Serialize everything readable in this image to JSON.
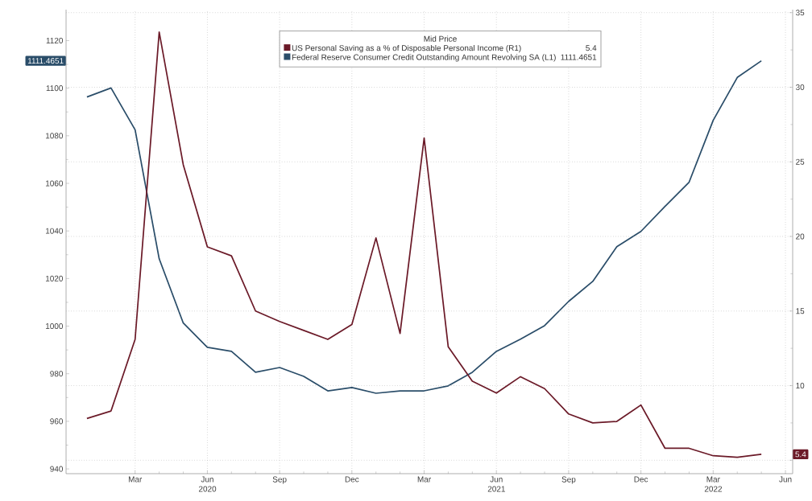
{
  "chart_data": {
    "type": "line",
    "legend_title": "Mid Price",
    "x": [
      "2020-01",
      "2020-02",
      "2020-03",
      "2020-04",
      "2020-05",
      "2020-06",
      "2020-07",
      "2020-08",
      "2020-09",
      "2020-10",
      "2020-11",
      "2020-12",
      "2021-01",
      "2021-02",
      "2021-03",
      "2021-04",
      "2021-05",
      "2021-06",
      "2021-07",
      "2021-08",
      "2021-09",
      "2021-10",
      "2021-11",
      "2021-12",
      "2022-01",
      "2022-02",
      "2022-03",
      "2022-04",
      "2022-05"
    ],
    "series": [
      {
        "name": "US Personal Saving as a % of Disposable Personal Income  (R1)",
        "color": "#6b1a28",
        "axis": "y2",
        "values": [
          7.8,
          8.3,
          13.1,
          33.7,
          24.8,
          19.3,
          18.7,
          15.0,
          14.3,
          13.7,
          13.1,
          14.1,
          19.9,
          13.5,
          26.6,
          12.6,
          10.3,
          9.5,
          10.6,
          9.8,
          8.1,
          7.5,
          7.6,
          8.7,
          5.8,
          5.8,
          5.3,
          5.2,
          5.4
        ]
      },
      {
        "name": "Federal Reserve Consumer Credit Outstanding Amount Revolving SA  (L1)",
        "color": "#2a4d69",
        "axis": "y",
        "values": [
          1096.3,
          1100.1,
          1082.5,
          1028.3,
          1001.3,
          991.1,
          989.4,
          980.6,
          982.6,
          978.9,
          972.8,
          974.2,
          971.8,
          972.8,
          972.8,
          974.9,
          980.6,
          989.4,
          994.5,
          1000.2,
          1010.4,
          1018.8,
          1033.4,
          1039.8,
          1050.3,
          1060.5,
          1086.5,
          1104.5,
          1111.5
        ]
      }
    ],
    "annotations": [
      "5.4",
      "1111.4651",
      "1111.4651",
      "5.4"
    ],
    "xlim": [
      "2019-12-05",
      "2022-06-10"
    ],
    "xticks": [
      {
        "value": "2020-03",
        "label": "Mar"
      },
      {
        "value": "2020-06",
        "label": "Jun 2020"
      },
      {
        "value": "2020-09",
        "label": "Sep"
      },
      {
        "value": "2020-12",
        "label": "Dec"
      },
      {
        "value": "2021-03",
        "label": "Mar"
      },
      {
        "value": "2021-06",
        "label": "Jun 2021"
      },
      {
        "value": "2021-09",
        "label": "Sep"
      },
      {
        "value": "2021-12",
        "label": "Dec"
      },
      {
        "value": "2022-03",
        "label": "Mar 2022"
      },
      {
        "value": "2022-06",
        "label": "Jun"
      }
    ],
    "ylim": [
      938,
      1133
    ],
    "yticks": [
      940,
      960,
      980,
      1000,
      1020,
      1040,
      1060,
      1080,
      1100,
      1120
    ],
    "y2lim": [
      4.1,
      35.2
    ],
    "y2ticks": [
      {
        "value": 5,
        "label": null
      },
      10,
      15,
      20,
      25,
      30,
      35
    ],
    "grid": true,
    "legend": "top",
    "marker": "none",
    "line_style": "solid"
  }
}
